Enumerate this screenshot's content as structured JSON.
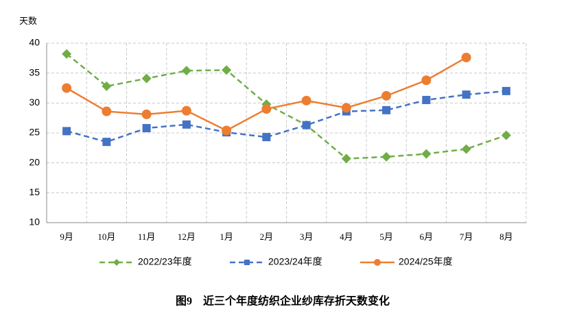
{
  "chart_data": {
    "type": "line",
    "title": "图9　近三个年度纺织企业纱库存折天数变化",
    "y_label": "天数",
    "categories": [
      "9月",
      "10月",
      "11月",
      "12月",
      "1月",
      "2月",
      "3月",
      "4月",
      "5月",
      "6月",
      "7月",
      "8月"
    ],
    "series": [
      {
        "name": "2022/23年度",
        "color": "#70ad47",
        "dash": true,
        "marker": "diamond",
        "values": [
          38.2,
          32.8,
          34.1,
          35.4,
          35.5,
          29.8,
          26.3,
          20.7,
          21.0,
          21.5,
          22.3,
          24.6
        ]
      },
      {
        "name": "2023/24年度",
        "color": "#4472c4",
        "dash": true,
        "marker": "square",
        "values": [
          25.3,
          23.5,
          25.8,
          26.4,
          25.1,
          24.3,
          26.3,
          28.6,
          28.8,
          30.5,
          31.4,
          32.0
        ]
      },
      {
        "name": "2024/25年度",
        "color": "#ed7d31",
        "dash": false,
        "marker": "circle",
        "values": [
          32.5,
          28.6,
          28.1,
          28.7,
          25.4,
          29.0,
          30.4,
          29.2,
          31.2,
          33.8,
          37.6,
          null
        ]
      }
    ],
    "ylim": [
      10,
      40
    ],
    "yticks": [
      10,
      15,
      20,
      25,
      30,
      35,
      40
    ],
    "grid": true,
    "legend": "bottom"
  }
}
